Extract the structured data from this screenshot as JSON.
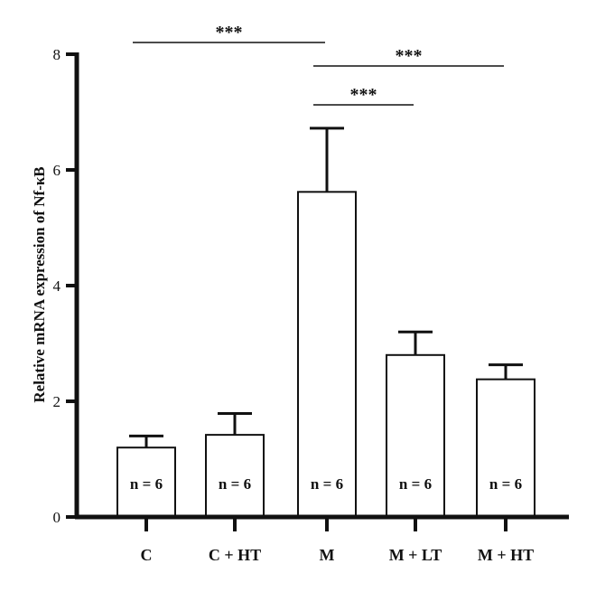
{
  "chart_data": {
    "type": "bar",
    "ylabel": "Relative mRNA expression of Nf-κB",
    "ylim": [
      0,
      8
    ],
    "yticks": [
      0,
      2,
      4,
      6,
      8
    ],
    "categories": [
      "C",
      "C + HT",
      "M",
      "M + LT",
      "M + HT"
    ],
    "values": [
      1.2,
      1.42,
      5.62,
      2.8,
      2.38
    ],
    "errors": [
      0.2,
      0.37,
      1.1,
      0.4,
      0.25
    ],
    "bar_labels": [
      "n = 6",
      "n = 6",
      "n = 6",
      "n = 6",
      "n = 6"
    ],
    "significance": [
      {
        "from": "C",
        "to": "M",
        "label": "***"
      },
      {
        "from": "M",
        "to": "M + HT",
        "label": "***"
      },
      {
        "from": "M",
        "to": "M + LT",
        "label": "***"
      }
    ],
    "colors": {
      "bar_fill": "#ffffff",
      "bar_stroke": "#111111",
      "axis": "#111111"
    }
  }
}
